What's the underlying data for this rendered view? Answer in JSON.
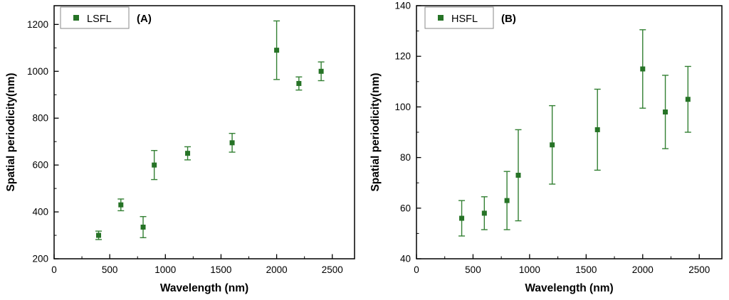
{
  "style": {
    "background": "#ffffff",
    "marker_color": "#267326",
    "errorbar_color": "#338033",
    "axis_color": "#000000",
    "legend_border_color": "#8a8a8a"
  },
  "chart_data": [
    {
      "type": "scatter",
      "panel": "A",
      "legend": "LSFL",
      "panel_label": "(A)",
      "xlabel": "Wavelength (nm)",
      "ylabel": "Spatial periodicity(nm)",
      "xlim": [
        0,
        2700
      ],
      "ylim": [
        200,
        1280
      ],
      "xticks": [
        0,
        500,
        1000,
        1500,
        2000,
        2500
      ],
      "yticks": [
        200,
        400,
        600,
        800,
        1000,
        1200
      ],
      "x": [
        400,
        600,
        800,
        900,
        1200,
        1600,
        2000,
        2200,
        2400
      ],
      "y": [
        300,
        430,
        335,
        600,
        650,
        695,
        1090,
        948,
        1000
      ],
      "yerr": [
        18,
        25,
        45,
        62,
        28,
        40,
        125,
        28,
        40
      ]
    },
    {
      "type": "scatter",
      "panel": "B",
      "legend": "HSFL",
      "panel_label": "(B)",
      "xlabel": "Wavelength (nm)",
      "ylabel": "Spatial periodicity(nm)",
      "xlim": [
        0,
        2700
      ],
      "ylim": [
        40,
        140
      ],
      "xticks": [
        0,
        500,
        1000,
        1500,
        2000,
        2500
      ],
      "yticks": [
        40,
        60,
        80,
        100,
        120,
        140
      ],
      "x": [
        400,
        600,
        800,
        900,
        1200,
        1600,
        2000,
        2200,
        2400
      ],
      "y": [
        56,
        58,
        63,
        73,
        85,
        91,
        115,
        98,
        103
      ],
      "yerr": [
        7,
        6.5,
        11.5,
        18,
        15.5,
        16,
        15.5,
        14.5,
        13
      ]
    }
  ]
}
